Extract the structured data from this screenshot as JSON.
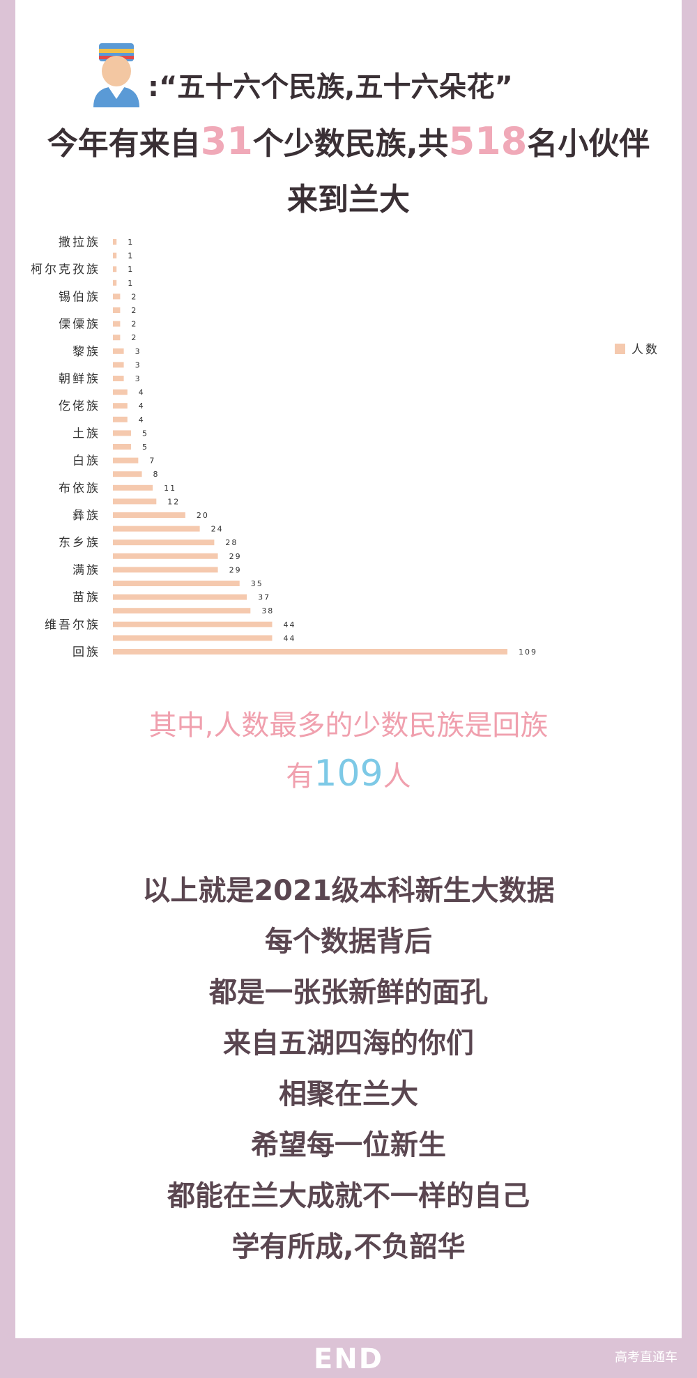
{
  "header": {
    "title_prefix": ":",
    "title_quote": "“五十六个民族,五十六朵花”",
    "line2_before": "今年有来自",
    "line2_num1": "31",
    "line2_mid": "个少数民族,共",
    "line2_num2": "518",
    "line2_after": "名小伙伴",
    "line3": "来到兰大"
  },
  "chart_data": {
    "type": "bar",
    "orientation": "horizontal",
    "categories": [
      "撒拉族",
      "",
      "柯尔克孜族",
      "",
      "锡伯族",
      "",
      "傈僳族",
      "",
      "黎族",
      "",
      "朝鲜族",
      "",
      "仡佬族",
      "",
      "土族",
      "",
      "白族",
      "",
      "布依族",
      "",
      "彝族",
      "",
      "东乡族",
      "",
      "满族",
      "",
      "苗族",
      "",
      "维吾尔族",
      "",
      "回族"
    ],
    "series": [
      {
        "name": "人数",
        "values": [
          1,
          1,
          1,
          1,
          2,
          2,
          2,
          2,
          3,
          3,
          3,
          4,
          4,
          4,
          5,
          5,
          7,
          8,
          11,
          12,
          20,
          24,
          28,
          29,
          29,
          35,
          37,
          38,
          44,
          44,
          109
        ]
      }
    ],
    "xlim": [
      0,
      109
    ],
    "grid": false,
    "legend": "right",
    "bar_color": "#f5c9ae",
    "label_color": "#333333"
  },
  "caption": {
    "line1": "其中,人数最多的少数民族是回族",
    "line2_before": "有",
    "line2_num": "109",
    "line2_after": "人"
  },
  "closing": [
    "以上就是2021级本科新生大数据",
    "每个数据背后",
    "都是一张张新鲜的面孔",
    "来自五湖四海的你们",
    "相聚在兰大",
    "希望每一位新生",
    "都能在兰大成就不一样的自己",
    "学有所成,不负韶华"
  ],
  "footer": {
    "end": "END",
    "watermark": "高考直通车"
  }
}
